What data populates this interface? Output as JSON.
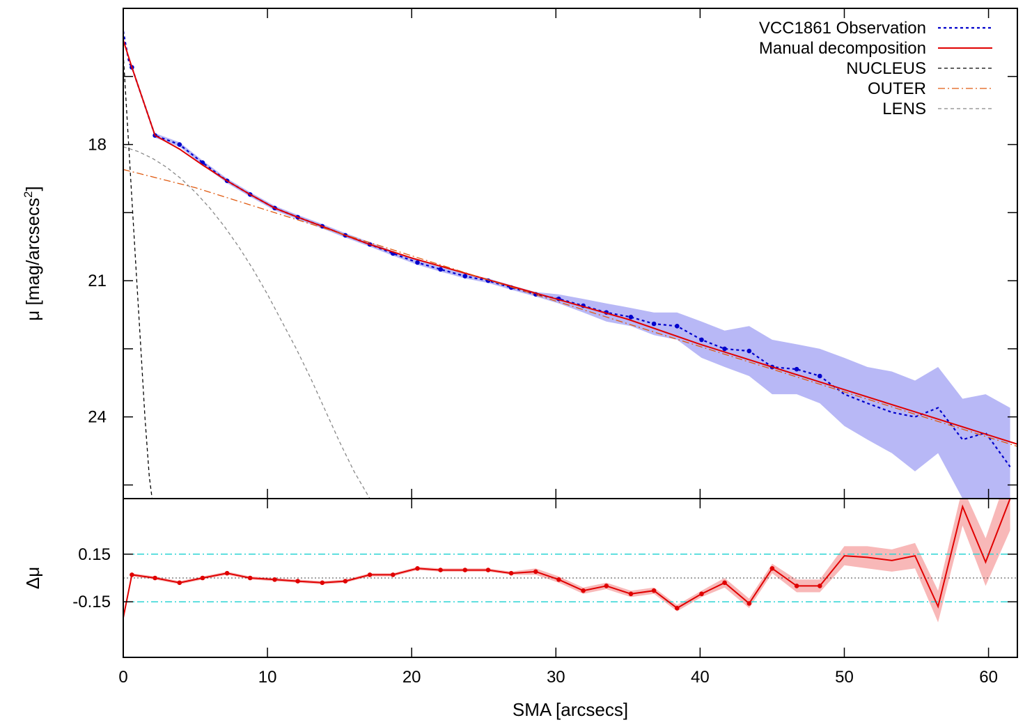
{
  "chart_data": [
    {
      "type": "line",
      "panel": "profile",
      "ylabel_main": "μ [mag/arcsecs",
      "ylabel_sup": "2",
      "ylabel_end": "]",
      "xlim": [
        0,
        62
      ],
      "ylim": [
        25.8,
        15.0
      ],
      "y_reversed": true,
      "yticks": [
        18,
        21,
        24
      ],
      "ytick_labels": [
        "18",
        "21",
        "24"
      ],
      "legend_position": "top-right",
      "series": [
        {
          "name": "VCC1861 Observation",
          "style": "dotted",
          "color": "#0000cc",
          "x": [
            0,
            0.4,
            0.6,
            2.2,
            3.9,
            5.5,
            7.2,
            8.8,
            10.5,
            12.1,
            13.8,
            15.4,
            17.1,
            18.7,
            20.4,
            22.0,
            23.7,
            25.3,
            26.9,
            28.6,
            30.2,
            31.9,
            33.5,
            35.2,
            36.8,
            38.4,
            40.1,
            41.7,
            43.4,
            45.0,
            46.7,
            48.3,
            50.0,
            51.6,
            53.3,
            54.9,
            56.5,
            58.2,
            59.8,
            61.5
          ],
          "y": [
            15.5,
            16.2,
            16.3,
            17.8,
            18.0,
            18.4,
            18.8,
            19.1,
            19.4,
            19.6,
            19.8,
            20.0,
            20.2,
            20.4,
            20.6,
            20.75,
            20.9,
            21.0,
            21.15,
            21.3,
            21.4,
            21.55,
            21.7,
            21.8,
            21.95,
            22.0,
            22.3,
            22.5,
            22.55,
            22.9,
            22.95,
            23.1,
            23.5,
            23.7,
            23.9,
            24.0,
            23.8,
            24.5,
            24.35,
            25.1
          ],
          "markers_x": [
            0.6,
            2.2,
            3.9,
            5.5,
            7.2,
            8.8,
            10.5,
            12.1,
            13.8,
            15.4,
            17.1,
            18.7,
            20.4,
            22.0,
            23.7,
            25.3,
            26.9,
            28.6,
            30.2,
            31.9,
            33.5,
            35.2,
            36.8,
            38.4,
            40.1,
            41.7,
            43.4,
            45.0,
            46.7,
            48.3
          ],
          "band_upper": [
            15.5,
            16.2,
            16.3,
            17.75,
            17.95,
            18.35,
            18.75,
            19.05,
            19.35,
            19.55,
            19.75,
            19.95,
            20.15,
            20.35,
            20.55,
            20.7,
            20.85,
            20.95,
            21.1,
            21.25,
            21.3,
            21.4,
            21.5,
            21.6,
            21.7,
            21.7,
            21.9,
            22.1,
            22.0,
            22.3,
            22.4,
            22.5,
            22.7,
            22.9,
            23.0,
            23.2,
            22.9,
            23.6,
            23.5,
            23.8
          ],
          "band_lower": [
            15.5,
            16.2,
            16.3,
            17.85,
            18.05,
            18.45,
            18.85,
            19.15,
            19.45,
            19.65,
            19.85,
            20.05,
            20.25,
            20.45,
            20.65,
            20.8,
            20.95,
            21.05,
            21.2,
            21.35,
            21.5,
            21.7,
            21.9,
            22.0,
            22.2,
            22.3,
            22.7,
            22.9,
            23.1,
            23.5,
            23.5,
            23.7,
            24.2,
            24.5,
            24.8,
            25.2,
            24.8,
            25.8,
            25.8,
            25.8
          ],
          "band_color": "#b8b8f6"
        },
        {
          "name": "Manual decomposition",
          "style": "solid",
          "color": "#e00000",
          "x": [
            0,
            0.6,
            2.2,
            3.9,
            5.5,
            7.2,
            8.8,
            10.5,
            12.1,
            13.8,
            15.4,
            17.1,
            20,
            25,
            30,
            35,
            40,
            45,
            50,
            55,
            62
          ],
          "y": [
            15.7,
            16.3,
            17.8,
            18.1,
            18.45,
            18.8,
            19.1,
            19.4,
            19.6,
            19.8,
            20.0,
            20.2,
            20.5,
            20.95,
            21.4,
            21.85,
            22.4,
            22.9,
            23.4,
            23.9,
            24.6
          ]
        },
        {
          "name": "NUCLEUS",
          "style": "dashed",
          "color": "#000000",
          "x": [
            0.0,
            0.3,
            0.6,
            0.9,
            1.2,
            1.5,
            1.8,
            2.0
          ],
          "y": [
            16.0,
            17.6,
            19.2,
            20.8,
            22.4,
            24.0,
            25.3,
            25.8
          ]
        },
        {
          "name": "OUTER",
          "style": "dash-dot",
          "color": "#e05a10",
          "x": [
            0,
            5,
            10,
            15,
            20,
            25,
            30,
            35,
            40,
            45,
            50,
            55,
            62
          ],
          "y": [
            18.55,
            18.95,
            19.45,
            19.95,
            20.45,
            20.95,
            21.45,
            21.95,
            22.45,
            22.95,
            23.45,
            23.95,
            24.65
          ]
        },
        {
          "name": "LENS",
          "style": "dashed",
          "color": "#888888",
          "x": [
            0,
            1,
            2,
            3,
            4,
            5,
            6,
            7,
            8,
            9,
            10,
            11,
            12,
            13,
            14,
            15,
            16,
            17.1
          ],
          "y": [
            18.05,
            18.15,
            18.3,
            18.5,
            18.75,
            19.05,
            19.4,
            19.8,
            20.25,
            20.75,
            21.3,
            21.9,
            22.5,
            23.15,
            23.85,
            24.55,
            25.2,
            25.8
          ]
        }
      ]
    },
    {
      "type": "line",
      "panel": "residual",
      "xlabel": "SMA [arcsecs]",
      "ylabel": "Δμ",
      "xlim": [
        0,
        62
      ],
      "ylim": [
        -0.5,
        0.5
      ],
      "xticks": [
        0,
        10,
        20,
        30,
        40,
        50,
        60
      ],
      "xtick_labels": [
        "0",
        "10",
        "20",
        "30",
        "40",
        "50",
        "60"
      ],
      "yticks": [
        0.15,
        -0.15
      ],
      "ytick_labels": [
        "0.15",
        "-0.15"
      ],
      "reference_lines": [
        0.15,
        0,
        -0.15
      ],
      "series": [
        {
          "name": "",
          "color": "#e00000",
          "x": [
            0,
            0.6,
            2.2,
            3.9,
            5.5,
            7.2,
            8.8,
            10.5,
            12.1,
            13.8,
            15.4,
            17.1,
            18.7,
            20.4,
            22.0,
            23.7,
            25.3,
            26.9,
            28.6,
            30.2,
            31.9,
            33.5,
            35.2,
            36.8,
            38.4,
            40.1,
            41.7,
            43.4,
            45.0,
            46.7,
            48.3,
            50.0,
            51.6,
            53.3,
            54.9,
            56.5,
            58.2,
            59.8,
            61.5
          ],
          "y": [
            -0.25,
            0.02,
            0.0,
            -0.03,
            0.0,
            0.03,
            0.0,
            -0.01,
            -0.02,
            -0.03,
            -0.02,
            0.02,
            0.02,
            0.06,
            0.05,
            0.05,
            0.05,
            0.03,
            0.04,
            -0.01,
            -0.08,
            -0.05,
            -0.1,
            -0.08,
            -0.19,
            -0.1,
            -0.03,
            -0.16,
            0.06,
            -0.05,
            -0.05,
            0.14,
            0.13,
            0.11,
            0.14,
            -0.18,
            0.45,
            0.1,
            0.5
          ],
          "markers_x": [
            0.6,
            2.2,
            3.9,
            5.5,
            7.2,
            8.8,
            10.5,
            12.1,
            13.8,
            15.4,
            17.1,
            18.7,
            20.4,
            22.0,
            23.7,
            25.3,
            26.9,
            28.6,
            30.2,
            31.9,
            33.5,
            35.2,
            36.8,
            38.4,
            40.1,
            41.7,
            43.4,
            45.0,
            46.7,
            48.3
          ],
          "band_halfwidth": [
            0.0,
            0.01,
            0.01,
            0.01,
            0.01,
            0.01,
            0.01,
            0.01,
            0.01,
            0.01,
            0.01,
            0.01,
            0.01,
            0.01,
            0.01,
            0.01,
            0.01,
            0.01,
            0.02,
            0.02,
            0.02,
            0.02,
            0.02,
            0.02,
            0.02,
            0.02,
            0.03,
            0.03,
            0.03,
            0.04,
            0.04,
            0.06,
            0.07,
            0.07,
            0.08,
            0.1,
            0.12,
            0.15,
            0.2
          ],
          "band_color": "#f8b8b8"
        }
      ]
    }
  ]
}
